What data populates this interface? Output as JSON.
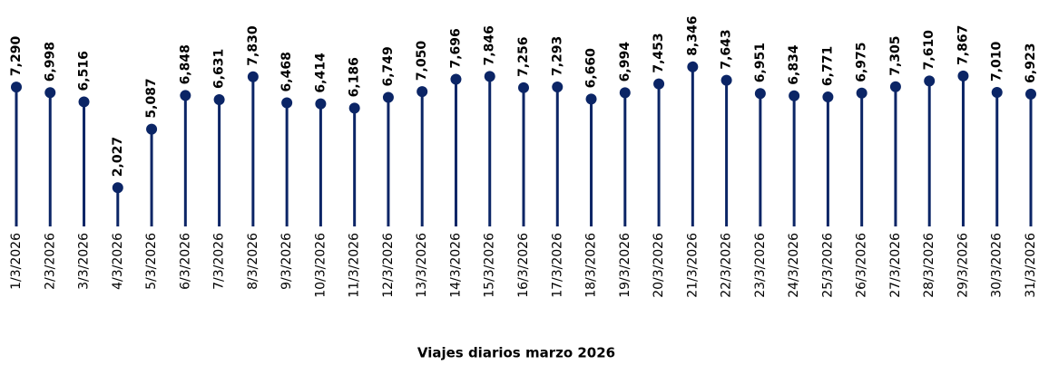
{
  "chart_data": {
    "type": "lollipop",
    "title": "Viajes diarios marzo 2026",
    "color": "#0b2566",
    "categories": [
      "1/3/2026",
      "2/3/2026",
      "3/3/2026",
      "4/3/2026",
      "5/3/2026",
      "6/3/2026",
      "7/3/2026",
      "8/3/2026",
      "9/3/2026",
      "10/3/2026",
      "11/3/2026",
      "12/3/2026",
      "13/3/2026",
      "14/3/2026",
      "15/3/2026",
      "16/3/2026",
      "17/3/2026",
      "18/3/2026",
      "19/3/2026",
      "20/3/2026",
      "21/3/2026",
      "22/3/2026",
      "23/3/2026",
      "24/3/2026",
      "25/3/2026",
      "26/3/2026",
      "27/3/2026",
      "28/3/2026",
      "29/3/2026",
      "30/3/2026",
      "31/3/2026"
    ],
    "values": [
      7290,
      6998,
      6516,
      2027,
      5087,
      6848,
      6631,
      7830,
      6468,
      6414,
      6186,
      6749,
      7050,
      7696,
      7846,
      7256,
      7293,
      6660,
      6994,
      7453,
      8346,
      7643,
      6951,
      6834,
      6771,
      6975,
      7305,
      7610,
      7867,
      7010,
      6923
    ],
    "value_labels": [
      "7,290",
      "6,998",
      "6,516",
      "2,027",
      "5,087",
      "6,848",
      "6,631",
      "7,830",
      "6,468",
      "6,414",
      "6,186",
      "6,749",
      "7,050",
      "7,696",
      "7,846",
      "7,256",
      "7,293",
      "6,660",
      "6,994",
      "7,453",
      "8,346",
      "7,643",
      "6,951",
      "6,834",
      "6,771",
      "6,975",
      "7,305",
      "7,610",
      "7,867",
      "7,010",
      "6,923"
    ],
    "ylim": [
      0,
      9000
    ]
  }
}
